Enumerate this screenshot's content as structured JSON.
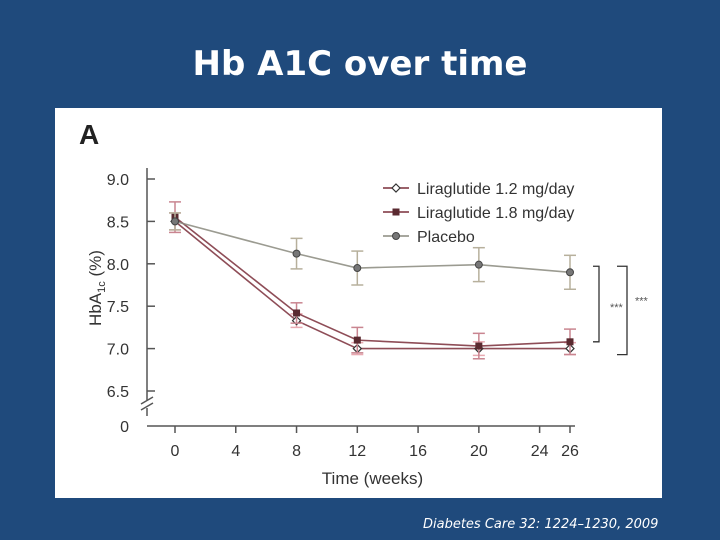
{
  "slide": {
    "title": "Hb A1C over time",
    "citation": "Diabetes Care 32: 1224–1230, 2009"
  },
  "chart_data": {
    "type": "line",
    "panel_label": "A",
    "title": "",
    "xlabel": "Time (weeks)",
    "ylabel": "HbA1c (%)",
    "ylabel_parts": {
      "main": "HbA",
      "subscript": "1c",
      "unit": " (%)"
    },
    "x_ticks": [
      0,
      4,
      8,
      12,
      16,
      20,
      24,
      26
    ],
    "y_ticks": [
      "9.0",
      "8.5",
      "8.0",
      "7.5",
      "7.0",
      "6.5"
    ],
    "y_tick_values": [
      9.0,
      8.5,
      8.0,
      7.5,
      7.0,
      6.5
    ],
    "y_zero_label": "0",
    "ylim": [
      6.5,
      9.0
    ],
    "xlim": [
      0,
      26
    ],
    "axis_break": true,
    "grid": false,
    "legend_position": "top-right",
    "series": [
      {
        "name": "Liraglutide 1.2 mg/day",
        "marker": "diamond",
        "color": "#7a2e3a",
        "x": [
          0,
          8,
          12,
          20,
          26
        ],
        "y": [
          8.5,
          7.33,
          7.0,
          7.0,
          7.0
        ],
        "err": [
          0.1,
          0.08,
          0.07,
          0.08,
          0.07
        ]
      },
      {
        "name": "Liraglutide 1.8 mg/day",
        "marker": "square",
        "color": "#7a2e3a",
        "x": [
          0,
          8,
          12,
          20,
          26
        ],
        "y": [
          8.55,
          7.42,
          7.1,
          7.03,
          7.08
        ],
        "err": [
          0.18,
          0.12,
          0.15,
          0.15,
          0.15
        ]
      },
      {
        "name": "Placebo",
        "marker": "circle",
        "color": "#8a8a7e",
        "x": [
          0,
          8,
          12,
          20,
          26
        ],
        "y": [
          8.5,
          8.12,
          7.95,
          7.99,
          7.9
        ],
        "err": [
          0.1,
          0.18,
          0.2,
          0.2,
          0.2
        ]
      }
    ],
    "significance": [
      {
        "label": "***",
        "bracket": [
          "Placebo",
          "Liraglutide 1.8 mg/day"
        ]
      },
      {
        "label": "***",
        "bracket": [
          "Placebo",
          "Liraglutide 1.2 mg/day"
        ]
      }
    ]
  }
}
